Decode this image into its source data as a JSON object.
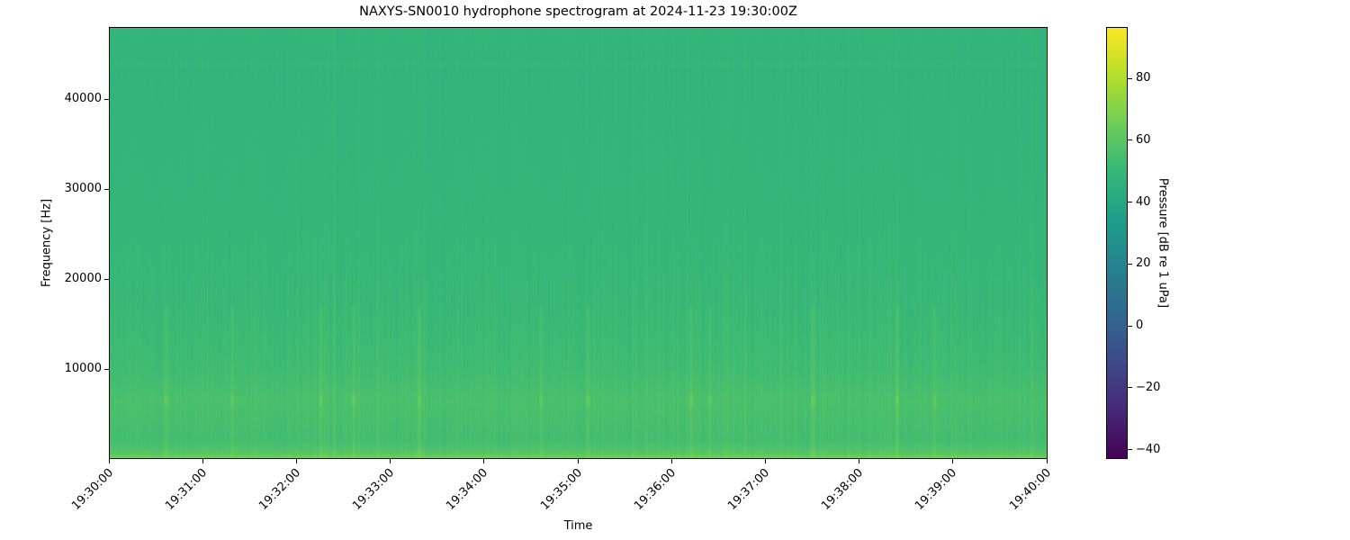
{
  "chart_data": {
    "type": "heatmap",
    "title": "NAXYS-SN0010 hydrophone spectrogram at 2024-11-23 19:30:00Z",
    "xlabel": "Time",
    "ylabel": "Frequency [Hz]",
    "x_range": [
      "19:30:00",
      "19:40:00"
    ],
    "x_ticks": [
      "19:30:00",
      "19:31:00",
      "19:32:00",
      "19:33:00",
      "19:34:00",
      "19:35:00",
      "19:36:00",
      "19:37:00",
      "19:38:00",
      "19:39:00",
      "19:40:00"
    ],
    "ylim": [
      0,
      48000
    ],
    "y_ticks": [
      10000,
      20000,
      30000,
      40000
    ],
    "colorbar": {
      "label": "Pressure [dB re 1 uPa]",
      "colormap": "viridis",
      "range": [
        -43,
        96.6
      ],
      "ticks": [
        -40,
        -20,
        0,
        20,
        40,
        60,
        80
      ]
    },
    "approx_levels_db": {
      "frequency_hz": [
        0,
        500,
        2000,
        6500,
        10000,
        17000,
        30000,
        44000,
        48000
      ],
      "level_db": [
        68,
        60,
        54,
        56,
        53,
        51,
        49,
        48,
        49
      ]
    },
    "transient_events_min": [
      0.6,
      1.3,
      2.25,
      2.6,
      3.3,
      4.6,
      5.1,
      6.2,
      6.4,
      7.5,
      8.4,
      8.8
    ]
  }
}
